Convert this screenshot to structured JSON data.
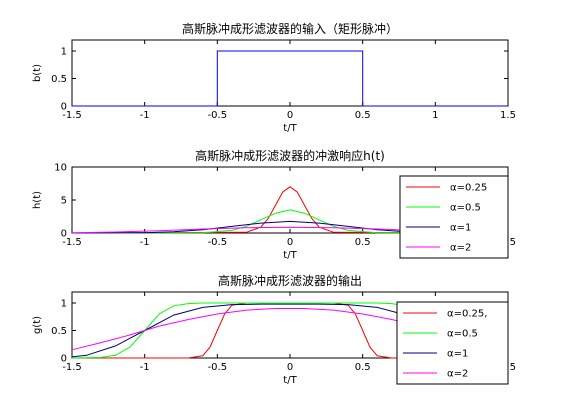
{
  "colors": {
    "blue": "#0000ff",
    "red": "#ff0000",
    "green": "#00ff00",
    "navy": "#000080",
    "magenta": "#ff00ff"
  },
  "chart_data": [
    {
      "type": "line",
      "title": "高斯脉冲成形滤波器的输入（矩形脉冲）",
      "xlabel": "t/T",
      "ylabel": "b(t)",
      "xlim": [
        -1.5,
        1.5
      ],
      "ylim": [
        0,
        1.2
      ],
      "xticks": [
        "-1.5",
        "-1",
        "-0.5",
        "0",
        "0.5",
        "1",
        "1.5"
      ],
      "yticks": [
        "0",
        "0.5",
        "1"
      ],
      "legend": "none",
      "series": [
        {
          "color": "#0000ff",
          "x": [
            -1.5,
            -0.5,
            -0.5,
            0.5,
            0.5,
            1.5
          ],
          "y": [
            0,
            0,
            1,
            1,
            0,
            0
          ]
        }
      ]
    },
    {
      "type": "line",
      "title": "高斯脉冲成形滤波器的冲激响应h(t)",
      "xlabel": "t/T",
      "ylabel": "h(t)",
      "xlim": [
        -1.5,
        1.5
      ],
      "ylim": [
        0,
        10
      ],
      "xticks": [
        "-1.5",
        "-1",
        "-0.5",
        "0",
        "0.5",
        "1",
        "1.5"
      ],
      "yticks": [
        "0",
        "5",
        "10"
      ],
      "legend": "top-right",
      "series": [
        {
          "name": "α=0.25",
          "color": "#ff0000",
          "x": [
            -1.5,
            -0.3,
            -0.2,
            -0.15,
            -0.1,
            -0.05,
            0,
            0.05,
            0.1,
            0.15,
            0.2,
            0.3,
            1.5
          ],
          "y": [
            0,
            0.1,
            0.9,
            2.2,
            4.2,
            6.2,
            7.0,
            6.2,
            4.2,
            2.2,
            0.9,
            0.1,
            0
          ]
        },
        {
          "name": "α=0.5",
          "color": "#00ff00",
          "x": [
            -1.5,
            -0.6,
            -0.4,
            -0.3,
            -0.2,
            -0.1,
            0,
            0.1,
            0.2,
            0.3,
            0.4,
            0.6,
            1.5
          ],
          "y": [
            0,
            0.05,
            0.4,
            1.0,
            2.0,
            3.0,
            3.5,
            3.0,
            2.0,
            1.0,
            0.4,
            0.05,
            0
          ]
        },
        {
          "name": "α=1",
          "color": "#000080",
          "x": [
            -1.5,
            -1.0,
            -0.8,
            -0.6,
            -0.4,
            -0.2,
            0,
            0.2,
            0.4,
            0.6,
            0.8,
            1.0,
            1.5
          ],
          "y": [
            0,
            0.05,
            0.2,
            0.5,
            1.0,
            1.5,
            1.75,
            1.5,
            1.0,
            0.5,
            0.2,
            0.05,
            0
          ]
        },
        {
          "name": "α=2",
          "color": "#ff00ff",
          "x": [
            -1.5,
            -1.2,
            -0.9,
            -0.6,
            -0.3,
            0,
            0.3,
            0.6,
            0.9,
            1.2,
            1.5
          ],
          "y": [
            0.05,
            0.15,
            0.35,
            0.6,
            0.8,
            0.88,
            0.8,
            0.6,
            0.35,
            0.15,
            0.05
          ]
        }
      ]
    },
    {
      "type": "line",
      "title": "高斯脉冲成形滤波器的输出",
      "xlabel": "t/T",
      "ylabel": "g(t)",
      "xlim": [
        -1.5,
        1.5
      ],
      "ylim": [
        0,
        1.2
      ],
      "xticks": [
        "-1.5",
        "-1",
        "-0.5",
        "0",
        "0.5",
        "1",
        "1.5"
      ],
      "yticks": [
        "0",
        "0.5",
        "1"
      ],
      "legend": "top-right",
      "series": [
        {
          "name": "α=0.25,",
          "color": "#ff0000",
          "x": [
            -1.5,
            -0.7,
            -0.6,
            -0.55,
            -0.5,
            -0.45,
            -0.4,
            -0.3,
            0.3,
            0.4,
            0.45,
            0.5,
            0.55,
            0.6,
            0.7,
            1.5
          ],
          "y": [
            0,
            0,
            0.04,
            0.2,
            0.5,
            0.8,
            0.96,
            1,
            1,
            0.96,
            0.8,
            0.5,
            0.2,
            0.04,
            0,
            0
          ]
        },
        {
          "name": "α=0.5",
          "color": "#00ff00",
          "x": [
            -1.5,
            -1.3,
            -1.2,
            -1.1,
            -1.0,
            -0.9,
            -0.8,
            -0.7,
            -0.6,
            0.6,
            0.7,
            0.8,
            0.9,
            1.0,
            1.1,
            1.2,
            1.3,
            1.5
          ],
          "y": [
            0,
            0.01,
            0.05,
            0.2,
            0.5,
            0.8,
            0.95,
            0.99,
            1,
            1,
            0.99,
            0.95,
            0.8,
            0.5,
            0.2,
            0.05,
            0.01,
            0
          ]
        },
        {
          "name": "α=1",
          "color": "#000080",
          "x": [
            -1.5,
            -1.4,
            -1.2,
            -1.0,
            -0.8,
            -0.6,
            -0.4,
            -0.2,
            0,
            0.2,
            0.4,
            0.6,
            0.8,
            1.0,
            1.2,
            1.4,
            1.5
          ],
          "y": [
            0.02,
            0.05,
            0.22,
            0.5,
            0.78,
            0.92,
            0.97,
            0.98,
            0.98,
            0.98,
            0.97,
            0.92,
            0.78,
            0.5,
            0.22,
            0.05,
            0.02
          ]
        },
        {
          "name": "α=2",
          "color": "#ff00ff",
          "x": [
            -1.5,
            -1.3,
            -1.1,
            -0.9,
            -0.7,
            -0.5,
            -0.3,
            -0.1,
            0,
            0.1,
            0.3,
            0.5,
            0.7,
            0.9,
            1.1,
            1.3,
            1.5
          ],
          "y": [
            0.15,
            0.28,
            0.42,
            0.58,
            0.7,
            0.8,
            0.87,
            0.9,
            0.9,
            0.9,
            0.87,
            0.8,
            0.7,
            0.58,
            0.42,
            0.28,
            0.15
          ]
        }
      ]
    }
  ]
}
